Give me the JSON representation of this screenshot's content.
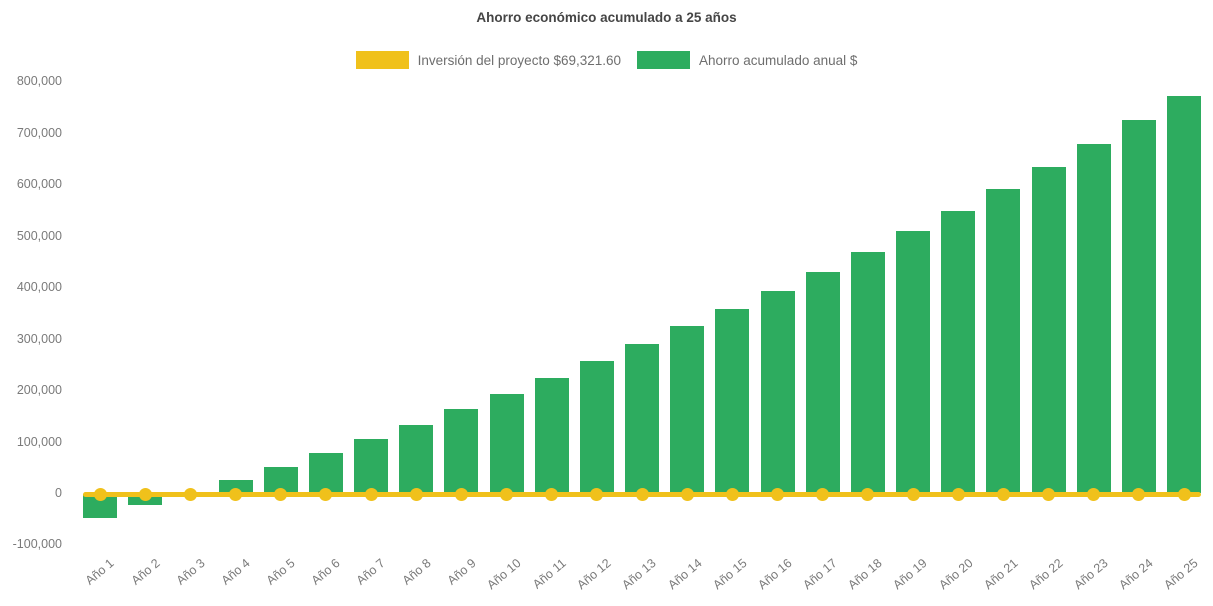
{
  "chart_data": {
    "type": "bar",
    "title": "Ahorro económico acumulado a 25 años",
    "categories": [
      "Año 1",
      "Año 2",
      "Año 3",
      "Año 4",
      "Año 5",
      "Año 6",
      "Año 7",
      "Año 8",
      "Año 9",
      "Año 10",
      "Año 11",
      "Año 12",
      "Año 13",
      "Año 14",
      "Año 15",
      "Año 16",
      "Año 17",
      "Año 18",
      "Año 19",
      "Año 20",
      "Año 21",
      "Año 22",
      "Año 23",
      "Año 24",
      "Año 25"
    ],
    "series": [
      {
        "name": "Inversión del proyecto $69,321.60",
        "type": "line",
        "color": "#F0C11B",
        "marker": "circle",
        "values": [
          0,
          0,
          0,
          0,
          0,
          0,
          0,
          0,
          0,
          0,
          0,
          0,
          0,
          0,
          0,
          0,
          0,
          0,
          0,
          0,
          0,
          0,
          0,
          0,
          0
        ]
      },
      {
        "name": "Ahorro acumulado anual $",
        "type": "bar",
        "color": "#2DAC5F",
        "values": [
          -47000,
          -23000,
          1000,
          26000,
          51000,
          78000,
          105000,
          134000,
          164000,
          194000,
          225000,
          257000,
          291000,
          325000,
          359000,
          394000,
          431000,
          469000,
          509000,
          548000,
          591000,
          634000,
          679000,
          725000,
          772000
        ]
      }
    ],
    "ylim": [
      -100000,
      800000
    ],
    "yticks": [
      800000,
      700000,
      600000,
      500000,
      400000,
      300000,
      200000,
      100000,
      0,
      -100000
    ],
    "ytick_format": "thousands-comma",
    "grid": false,
    "legend_position": "top",
    "background": "#FFFFFF",
    "text_colors": {
      "title": "#454545",
      "legend": "#6E6E6E",
      "axis": "#7A7A7A"
    }
  }
}
